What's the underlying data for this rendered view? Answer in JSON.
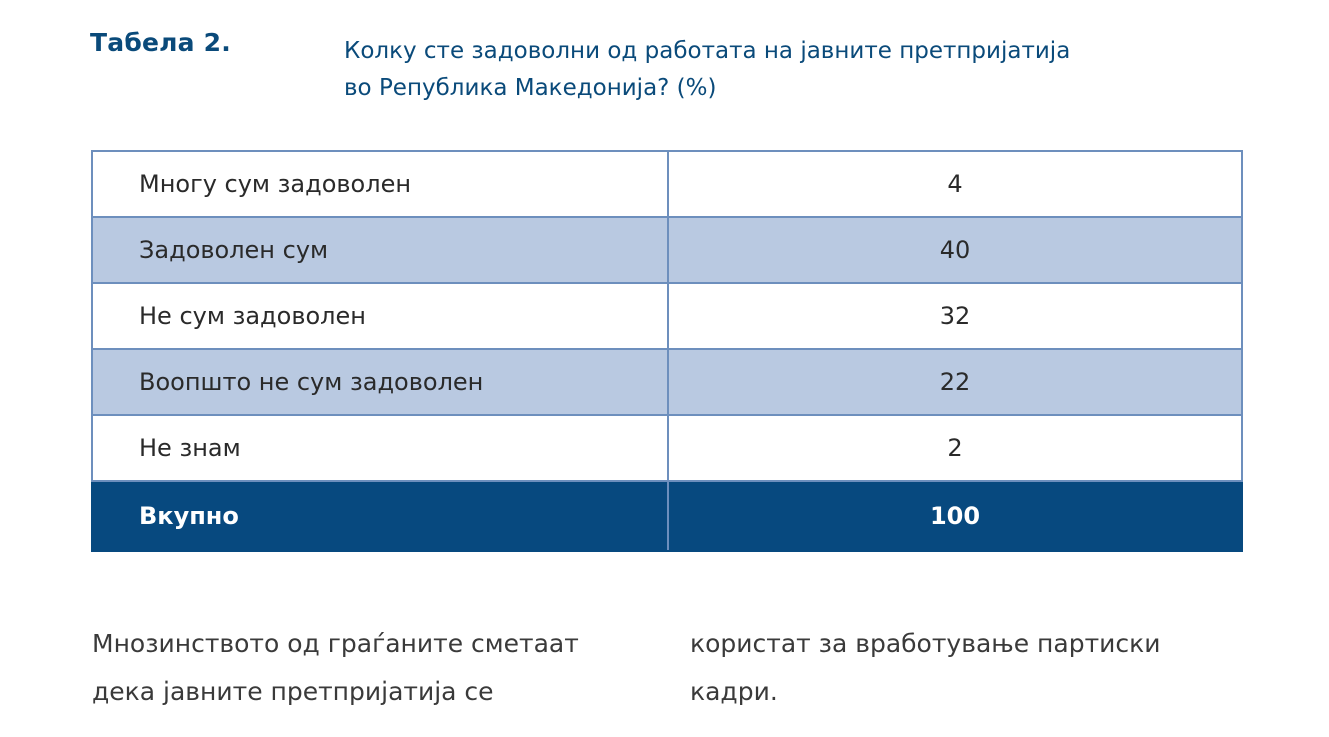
{
  "table_label": "Табела 2.",
  "table_title": {
    "line1": "Колку сте задоволни од работата на јавните претпријатија",
    "line2": "во Република Македонија? (%)"
  },
  "rows": [
    {
      "label": "Многу сум задоволен",
      "value": "4"
    },
    {
      "label": "Задоволен сум",
      "value": "40"
    },
    {
      "label": "Не сум задоволен",
      "value": "32"
    },
    {
      "label": "Воопшто не сум задоволен",
      "value": "22"
    },
    {
      "label": "Не знам",
      "value": "2"
    }
  ],
  "total": {
    "label": "Вкупно",
    "value": "100"
  },
  "body_text": {
    "left": {
      "line1": "Мнозинството од граѓаните сметаат",
      "line2": "дека јавните претпријатија се"
    },
    "right": {
      "line1": "користат за вработување партиски",
      "line2": "кадри."
    }
  },
  "colors": {
    "accent": "#0a4a7a",
    "row_shaded": "#b9c9e1",
    "total_row": "#07497f",
    "border": "#6d8fbd"
  }
}
